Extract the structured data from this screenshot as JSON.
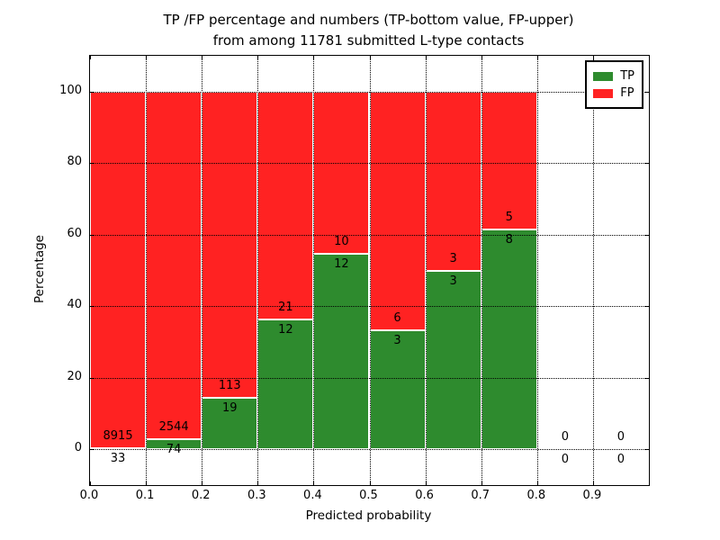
{
  "figure": {
    "title_line1": "TP /FP percentage and numbers (TP-bottom value, FP-upper)",
    "title_line2": "from among 11781 submitted L-type contacts"
  },
  "chart_data": {
    "type": "bar",
    "stacked": true,
    "title": "TP /FP percentage and numbers (TP-bottom value, FP-upper) from among 11781 submitted L-type contacts",
    "xlabel": "Predicted probability",
    "ylabel": "Percentage",
    "total_submitted_contacts": 11781,
    "xlim": [
      0.0,
      1.0
    ],
    "ylim": [
      -10,
      110
    ],
    "grid": "dotted, on",
    "legend_position": "upper right",
    "x_tick_values": [
      0.0,
      0.1,
      0.2,
      0.3,
      0.4,
      0.5,
      0.6,
      0.7,
      0.8,
      0.9
    ],
    "x_tick_labels": [
      "0.0",
      "0.1",
      "0.2",
      "0.3",
      "0.4",
      "0.5",
      "0.6",
      "0.7",
      "0.8",
      "0.9"
    ],
    "y_tick_values": [
      0,
      20,
      40,
      60,
      80,
      100
    ],
    "y_tick_labels": [
      "0",
      "20",
      "40",
      "60",
      "80",
      "100"
    ],
    "categories": [
      "0.0-0.1",
      "0.1-0.2",
      "0.2-0.3",
      "0.3-0.4",
      "0.4-0.5",
      "0.5-0.6",
      "0.6-0.7",
      "0.7-0.8",
      "0.8-0.9",
      "0.9-1.0"
    ],
    "bin_starts": [
      0.0,
      0.1,
      0.2,
      0.3,
      0.4,
      0.5,
      0.6,
      0.7,
      0.8,
      0.9
    ],
    "bin_width": 0.1,
    "series": [
      {
        "name": "TP",
        "color": "#2e8b2e",
        "counts": [
          33,
          74,
          19,
          12,
          12,
          3,
          3,
          8,
          0,
          0
        ]
      },
      {
        "name": "FP",
        "color": "#ff2222",
        "counts": [
          8915,
          2544,
          113,
          21,
          10,
          6,
          3,
          5,
          0,
          0
        ]
      }
    ],
    "tp_percent": [
      0.37,
      2.83,
      14.39,
      36.36,
      54.55,
      33.33,
      50.0,
      61.54,
      null,
      null
    ],
    "legend": [
      {
        "label": "TP",
        "color": "#2e8b2e"
      },
      {
        "label": "FP",
        "color": "#ff2222"
      }
    ]
  }
}
